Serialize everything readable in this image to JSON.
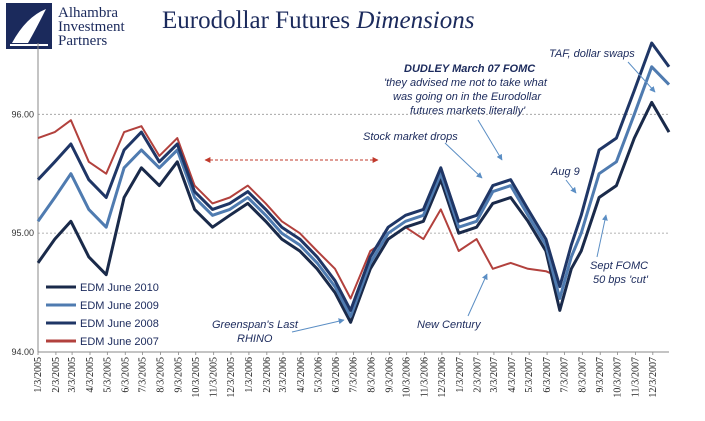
{
  "logo": {
    "line1": "Alhambra",
    "line2": "Investment",
    "line3": "Partners",
    "icon": "ship-sail-icon"
  },
  "title": {
    "main": "Eurodollar Futures ",
    "italic": "Dimensions"
  },
  "chart_data": {
    "type": "line",
    "ylim": [
      94.0,
      96.6
    ],
    "yticks": [
      "94.00",
      "95.00",
      "96.00"
    ],
    "xlim": [
      "2005-01-03",
      "2007-12-31"
    ],
    "x_tick_labels": [
      "1/3/2005",
      "2/3/2005",
      "3/3/2005",
      "4/3/2005",
      "5/3/2005",
      "6/3/2005",
      "7/3/2005",
      "8/3/2005",
      "9/3/2005",
      "10/3/2005",
      "11/3/2005",
      "12/3/2005",
      "1/3/2006",
      "2/3/2006",
      "3/3/2006",
      "4/3/2006",
      "5/3/2006",
      "6/3/2006",
      "7/3/2006",
      "8/3/2006",
      "9/3/2006",
      "10/3/2006",
      "11/3/2006",
      "12/3/2006",
      "1/3/2007",
      "2/3/2007",
      "3/3/2007",
      "4/3/2007",
      "5/3/2007",
      "6/3/2007",
      "7/3/2007",
      "8/3/2007",
      "9/3/2007",
      "10/3/2007",
      "11/3/2007",
      "12/3/2007"
    ],
    "legend_position": "bottom-left",
    "grid": "horizontal-dashed",
    "series": [
      {
        "name": "EDM June 2010",
        "color": "#1a2a4a",
        "points": [
          [
            "2005-01-03",
            94.75
          ],
          [
            "2005-02-01",
            94.95
          ],
          [
            "2005-03-01",
            95.1
          ],
          [
            "2005-04-01",
            94.8
          ],
          [
            "2005-05-01",
            94.65
          ],
          [
            "2005-06-01",
            95.3
          ],
          [
            "2005-07-01",
            95.55
          ],
          [
            "2005-08-01",
            95.4
          ],
          [
            "2005-09-01",
            95.6
          ],
          [
            "2005-10-01",
            95.2
          ],
          [
            "2005-11-01",
            95.05
          ],
          [
            "2005-12-01",
            95.15
          ],
          [
            "2006-01-01",
            95.25
          ],
          [
            "2006-02-01",
            95.1
          ],
          [
            "2006-03-01",
            94.95
          ],
          [
            "2006-04-01",
            94.85
          ],
          [
            "2006-05-01",
            94.7
          ],
          [
            "2006-06-01",
            94.5
          ],
          [
            "2006-06-28",
            94.25
          ],
          [
            "2006-08-01",
            94.7
          ],
          [
            "2006-09-01",
            94.95
          ],
          [
            "2006-10-01",
            95.05
          ],
          [
            "2006-11-01",
            95.1
          ],
          [
            "2006-12-01",
            95.45
          ],
          [
            "2007-01-01",
            95.0
          ],
          [
            "2007-02-01",
            95.05
          ],
          [
            "2007-03-01",
            95.25
          ],
          [
            "2007-04-01",
            95.3
          ],
          [
            "2007-05-01",
            95.1
          ],
          [
            "2007-06-01",
            94.85
          ],
          [
            "2007-06-25",
            94.35
          ],
          [
            "2007-07-15",
            94.7
          ],
          [
            "2007-08-01",
            94.85
          ],
          [
            "2007-09-01",
            95.3
          ],
          [
            "2007-10-01",
            95.4
          ],
          [
            "2007-11-01",
            95.8
          ],
          [
            "2007-12-01",
            96.1
          ],
          [
            "2007-12-31",
            95.85
          ]
        ]
      },
      {
        "name": "EDM June 2009",
        "color": "#4f7bb0",
        "points": [
          [
            "2005-01-03",
            95.1
          ],
          [
            "2005-02-01",
            95.3
          ],
          [
            "2005-03-01",
            95.5
          ],
          [
            "2005-04-01",
            95.2
          ],
          [
            "2005-05-01",
            95.05
          ],
          [
            "2005-06-01",
            95.55
          ],
          [
            "2005-07-01",
            95.7
          ],
          [
            "2005-08-01",
            95.55
          ],
          [
            "2005-09-01",
            95.7
          ],
          [
            "2005-10-01",
            95.3
          ],
          [
            "2005-11-01",
            95.15
          ],
          [
            "2005-12-01",
            95.2
          ],
          [
            "2006-01-01",
            95.3
          ],
          [
            "2006-02-01",
            95.15
          ],
          [
            "2006-03-01",
            95.0
          ],
          [
            "2006-04-01",
            94.9
          ],
          [
            "2006-05-01",
            94.75
          ],
          [
            "2006-06-01",
            94.55
          ],
          [
            "2006-06-28",
            94.3
          ],
          [
            "2006-08-01",
            94.75
          ],
          [
            "2006-09-01",
            95.0
          ],
          [
            "2006-10-01",
            95.1
          ],
          [
            "2006-11-01",
            95.15
          ],
          [
            "2006-12-01",
            95.5
          ],
          [
            "2007-01-01",
            95.05
          ],
          [
            "2007-02-01",
            95.1
          ],
          [
            "2007-03-01",
            95.35
          ],
          [
            "2007-04-01",
            95.4
          ],
          [
            "2007-05-01",
            95.15
          ],
          [
            "2007-06-01",
            94.9
          ],
          [
            "2007-06-25",
            94.45
          ],
          [
            "2007-07-15",
            94.8
          ],
          [
            "2007-08-01",
            95.0
          ],
          [
            "2007-09-01",
            95.5
          ],
          [
            "2007-10-01",
            95.6
          ],
          [
            "2007-11-01",
            96.0
          ],
          [
            "2007-12-01",
            96.4
          ],
          [
            "2007-12-31",
            96.25
          ]
        ]
      },
      {
        "name": "EDM June 2008",
        "color": "#1f3666",
        "points": [
          [
            "2005-01-03",
            95.45
          ],
          [
            "2005-02-01",
            95.6
          ],
          [
            "2005-03-01",
            95.75
          ],
          [
            "2005-04-01",
            95.45
          ],
          [
            "2005-05-01",
            95.3
          ],
          [
            "2005-06-01",
            95.7
          ],
          [
            "2005-07-01",
            95.85
          ],
          [
            "2005-08-01",
            95.6
          ],
          [
            "2005-09-01",
            95.75
          ],
          [
            "2005-10-01",
            95.35
          ],
          [
            "2005-11-01",
            95.2
          ],
          [
            "2005-12-01",
            95.25
          ],
          [
            "2006-01-01",
            95.35
          ],
          [
            "2006-02-01",
            95.2
          ],
          [
            "2006-03-01",
            95.05
          ],
          [
            "2006-04-01",
            94.95
          ],
          [
            "2006-05-01",
            94.8
          ],
          [
            "2006-06-01",
            94.6
          ],
          [
            "2006-06-28",
            94.35
          ],
          [
            "2006-08-01",
            94.8
          ],
          [
            "2006-09-01",
            95.05
          ],
          [
            "2006-10-01",
            95.15
          ],
          [
            "2006-11-01",
            95.2
          ],
          [
            "2006-12-01",
            95.55
          ],
          [
            "2007-01-01",
            95.1
          ],
          [
            "2007-02-01",
            95.15
          ],
          [
            "2007-03-01",
            95.4
          ],
          [
            "2007-04-01",
            95.45
          ],
          [
            "2007-05-01",
            95.2
          ],
          [
            "2007-06-01",
            94.95
          ],
          [
            "2007-06-25",
            94.55
          ],
          [
            "2007-07-15",
            94.9
          ],
          [
            "2007-08-01",
            95.15
          ],
          [
            "2007-09-01",
            95.7
          ],
          [
            "2007-10-01",
            95.8
          ],
          [
            "2007-11-01",
            96.2
          ],
          [
            "2007-12-01",
            96.6
          ],
          [
            "2007-12-31",
            96.4
          ]
        ]
      },
      {
        "name": "EDM June 2007",
        "color": "#b2413d",
        "points": [
          [
            "2005-01-03",
            95.8
          ],
          [
            "2005-02-01",
            95.85
          ],
          [
            "2005-03-01",
            95.95
          ],
          [
            "2005-04-01",
            95.6
          ],
          [
            "2005-05-01",
            95.5
          ],
          [
            "2005-06-01",
            95.85
          ],
          [
            "2005-07-01",
            95.9
          ],
          [
            "2005-08-01",
            95.65
          ],
          [
            "2005-09-01",
            95.8
          ],
          [
            "2005-10-01",
            95.4
          ],
          [
            "2005-11-01",
            95.25
          ],
          [
            "2005-12-01",
            95.3
          ],
          [
            "2006-01-01",
            95.4
          ],
          [
            "2006-02-01",
            95.25
          ],
          [
            "2006-03-01",
            95.1
          ],
          [
            "2006-04-01",
            95.0
          ],
          [
            "2006-05-01",
            94.85
          ],
          [
            "2006-06-01",
            94.7
          ],
          [
            "2006-06-28",
            94.45
          ],
          [
            "2006-08-01",
            94.85
          ],
          [
            "2006-09-01",
            94.95
          ],
          [
            "2006-10-01",
            95.05
          ],
          [
            "2006-11-01",
            94.95
          ],
          [
            "2006-12-01",
            95.2
          ],
          [
            "2007-01-01",
            94.85
          ],
          [
            "2007-02-01",
            94.95
          ],
          [
            "2007-03-01",
            94.7
          ],
          [
            "2007-04-01",
            94.75
          ],
          [
            "2007-05-01",
            94.7
          ],
          [
            "2007-06-01",
            94.68
          ],
          [
            "2007-06-15",
            94.65
          ]
        ]
      }
    ],
    "annotations": {
      "dudley_title": "DUDLEY  March 07 FOMC",
      "dudley_quote1": "'they advised me not to take what",
      "dudley_quote2": "was going on in the Eurodollar",
      "dudley_quote3": "futures markets literally'",
      "stock_market": "Stock market drops",
      "taf": "TAF, dollar swaps",
      "aug9": "Aug 9",
      "sept1": "Sept FOMC",
      "sept2": "50 bps 'cut'",
      "new_century": "New Century",
      "greenspan1": "Greenspan's Last",
      "greenspan2": "RHINO"
    }
  }
}
